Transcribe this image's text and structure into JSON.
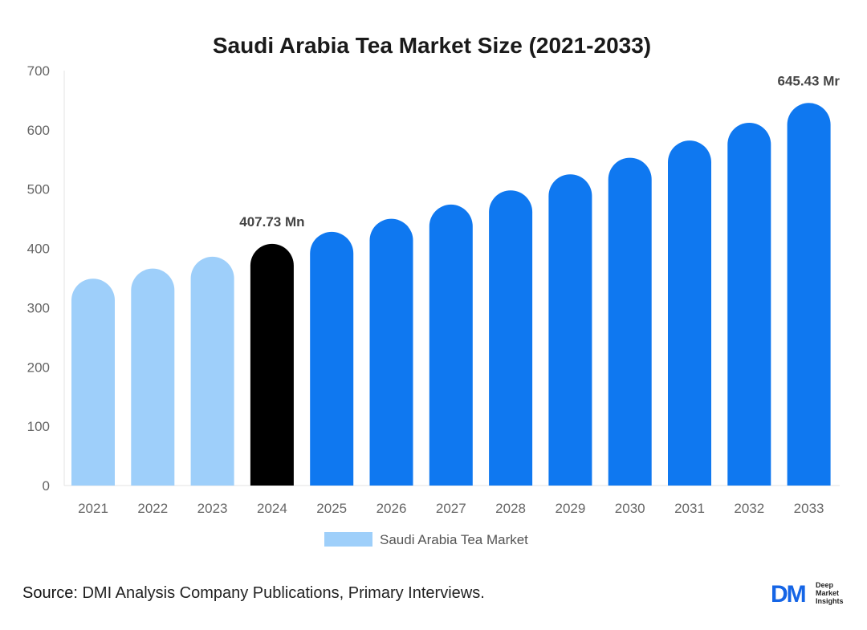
{
  "chart_data": {
    "type": "bar",
    "title": "Saudi Arabia Tea Market Size (2021-2033)",
    "categories": [
      "2021",
      "2022",
      "2023",
      "2024",
      "2025",
      "2026",
      "2027",
      "2028",
      "2029",
      "2030",
      "2031",
      "2032",
      "2033"
    ],
    "series": [
      {
        "name": "Saudi Arabia Tea Market",
        "values": [
          349,
          366,
          386,
          407.73,
          428,
          450,
          474,
          498,
          525,
          553,
          582,
          612,
          645.43
        ]
      }
    ],
    "bar_colors": [
      "#9ecffa",
      "#9ecffa",
      "#9ecffa",
      "#000000",
      "#0f78f0",
      "#0f78f0",
      "#0f78f0",
      "#0f78f0",
      "#0f78f0",
      "#0f78f0",
      "#0f78f0",
      "#0f78f0",
      "#0f78f0"
    ],
    "legend_color": "#9ecffa",
    "data_labels": [
      {
        "category": "2024",
        "text": "407.73 Mn"
      },
      {
        "category": "2033",
        "text": "645.43 Mr"
      }
    ],
    "yticks": [
      0,
      100,
      200,
      300,
      400,
      500,
      600,
      700
    ],
    "ylim": [
      0,
      700
    ],
    "xlabel": "",
    "ylabel": "",
    "legend_position": "bottom",
    "grid": false
  },
  "footer": {
    "source_label": "Source",
    "source_text": ": DMI Analysis Company Publications, Primary Interviews."
  },
  "logo": {
    "mark": "DM",
    "line1": "Deep",
    "line2": "Market",
    "line3": "Insights"
  }
}
